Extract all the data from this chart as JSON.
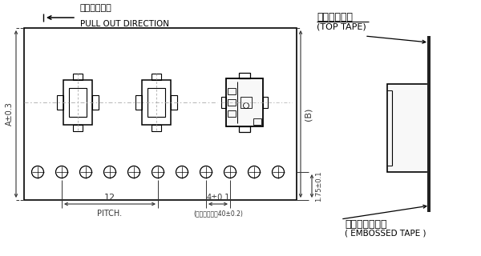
{
  "bg_color": "#ffffff",
  "line_color": "#000000",
  "dim_color": "#333333",
  "title_jp1": "引き出し方向",
  "title_en1": "PULL OUT DIRECTION",
  "label_top_jp": "トップテープ",
  "label_top_en": "(TOP TAPE)",
  "label_emb_jp": "エンボステープ",
  "label_emb_en": "( EMBOSSED TAPE )",
  "label_A": "A±0.3",
  "label_B": "(B)",
  "dim_12": "12",
  "dim_pitch": "PITCH.",
  "dim_4": "4±0.1",
  "dim_acc": "(累積ピッチ：40±0.2)",
  "dim_175": "1.75±0.1"
}
